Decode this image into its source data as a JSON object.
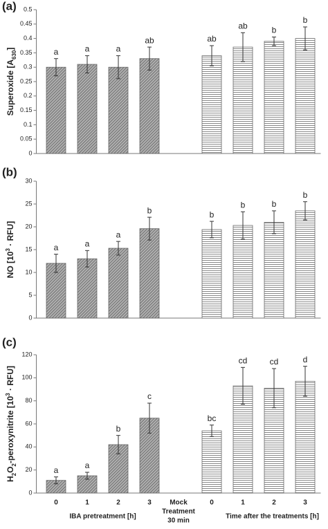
{
  "chart_data": [
    {
      "type": "bar",
      "panel_label": "(a)",
      "y_label": [
        {
          "text": "Superoxide [A"
        },
        {
          "text": "630",
          "script": "sub"
        },
        {
          "text": "]"
        }
      ],
      "values": [
        0.3,
        0.31,
        0.3,
        0.33,
        null,
        0.34,
        0.37,
        0.39,
        0.4
      ],
      "errors": [
        0.03,
        0.03,
        0.04,
        0.04,
        null,
        0.035,
        0.05,
        0.015,
        0.04
      ],
      "letters": [
        "a",
        "a",
        "a",
        "ab",
        null,
        "ab",
        "ab",
        "b",
        "b"
      ],
      "ylim": [
        0,
        0.5
      ],
      "yticks": [
        0,
        0.05,
        0.1,
        0.15,
        0.2,
        0.25,
        0.3,
        0.35,
        0.4,
        0.45,
        0.5
      ]
    },
    {
      "type": "bar",
      "panel_label": "(b)",
      "y_label": [
        {
          "text": "NO  [10"
        },
        {
          "text": "3",
          "script": "sup"
        },
        {
          "text": " · RFU]"
        }
      ],
      "values": [
        12,
        13,
        15.3,
        19.6,
        null,
        19.4,
        20.3,
        21,
        23.5
      ],
      "errors": [
        2,
        1.8,
        1.5,
        2.5,
        null,
        1.8,
        3,
        2.5,
        2
      ],
      "letters": [
        "a",
        "a",
        "a",
        "b",
        null,
        "b",
        "b",
        "b",
        "b"
      ],
      "ylim": [
        0,
        30
      ],
      "yticks": [
        0,
        5,
        10,
        15,
        20,
        25,
        30
      ]
    },
    {
      "type": "bar",
      "panel_label": "(c)",
      "y_label": [
        {
          "text": "H"
        },
        {
          "text": "2",
          "script": "sub"
        },
        {
          "text": "O"
        },
        {
          "text": "2",
          "script": "sub"
        },
        {
          "text": "-peroxynitrite [10"
        },
        {
          "text": "3",
          "script": "sup"
        },
        {
          "text": " · RFU]"
        }
      ],
      "categories": [
        "0",
        "1",
        "2",
        "3",
        [
          "Mock",
          "Treatment",
          "30 min"
        ],
        "0",
        "1",
        "2",
        "3"
      ],
      "group_labels": [
        "IBA pretreatment [h]",
        "Time after the treatments [h]"
      ],
      "values": [
        11,
        15,
        42,
        65,
        null,
        54,
        93,
        91,
        97
      ],
      "errors": [
        3,
        3,
        8,
        13,
        null,
        5,
        16,
        17,
        13
      ],
      "letters": [
        "a",
        "a",
        "b",
        "c",
        null,
        "bc",
        "cd",
        "cd",
        "d"
      ],
      "ylim": [
        0,
        120
      ],
      "yticks": [
        0,
        20,
        40,
        60,
        80,
        100,
        120
      ]
    }
  ]
}
